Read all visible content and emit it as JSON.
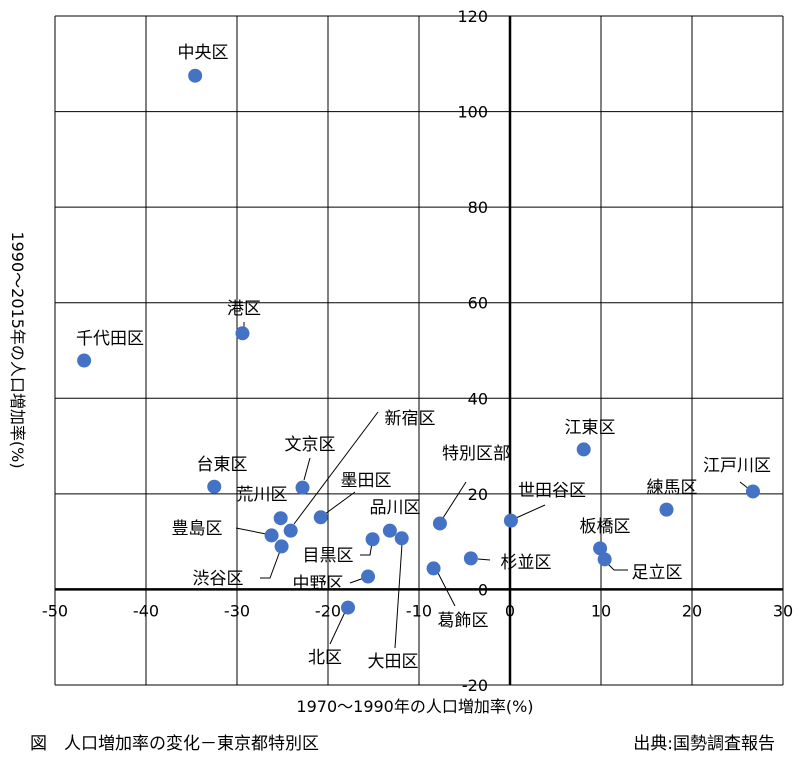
{
  "chart_data": {
    "type": "scatter",
    "xlabel": "1970〜1990年の人口増加率(%)",
    "ylabel": "1990〜2015年の人口増加率(%)",
    "xlim": [
      -50,
      30
    ],
    "ylim": [
      -20,
      120
    ],
    "xticks": [
      "-50",
      "-40",
      "-30",
      "-20",
      "-10",
      "0",
      "10",
      "20",
      "30"
    ],
    "yticks": [
      "-20",
      "0",
      "20",
      "40",
      "60",
      "80",
      "100",
      "120"
    ],
    "grid": true,
    "point_color": "#4472C4",
    "points": [
      {
        "label": "中央区",
        "x": -34.6,
        "y": 107.5
      },
      {
        "label": "千代田区",
        "x": -46.8,
        "y": 47.9
      },
      {
        "label": "港区",
        "x": -29.4,
        "y": 53.6
      },
      {
        "label": "台東区",
        "x": -32.5,
        "y": 21.5
      },
      {
        "label": "文京区",
        "x": -22.8,
        "y": 21.3
      },
      {
        "label": "荒川区",
        "x": -25.2,
        "y": 14.9
      },
      {
        "label": "新宿区",
        "x": -24.1,
        "y": 12.3
      },
      {
        "label": "豊島区",
        "x": -26.2,
        "y": 11.3
      },
      {
        "label": "渋谷区",
        "x": -25.1,
        "y": 9.0
      },
      {
        "label": "墨田区",
        "x": -20.8,
        "y": 15.1
      },
      {
        "label": "品川区",
        "x": -13.2,
        "y": 12.3
      },
      {
        "label": "目黒区",
        "x": -15.1,
        "y": 10.5
      },
      {
        "label": "大田区",
        "x": -11.9,
        "y": 10.7
      },
      {
        "label": "中野区",
        "x": -15.6,
        "y": 2.7
      },
      {
        "label": "北区",
        "x": -17.8,
        "y": -3.8
      },
      {
        "label": "葛飾区",
        "x": -8.4,
        "y": 4.4
      },
      {
        "label": "特別区部",
        "x": -7.7,
        "y": 13.8
      },
      {
        "label": "杉並区",
        "x": -4.3,
        "y": 6.5
      },
      {
        "label": "世田谷区",
        "x": 0.1,
        "y": 14.4
      },
      {
        "label": "江東区",
        "x": 8.1,
        "y": 29.3
      },
      {
        "label": "練馬区",
        "x": 17.2,
        "y": 16.7
      },
      {
        "label": "江戸川区",
        "x": 26.7,
        "y": 20.5
      },
      {
        "label": "板橋区",
        "x": 9.9,
        "y": 8.6
      },
      {
        "label": "足立区",
        "x": 10.4,
        "y": 6.3
      }
    ]
  },
  "caption": {
    "title": "図　人口増加率の変化－東京都特別区",
    "source": "出典:国勢調査報告"
  }
}
